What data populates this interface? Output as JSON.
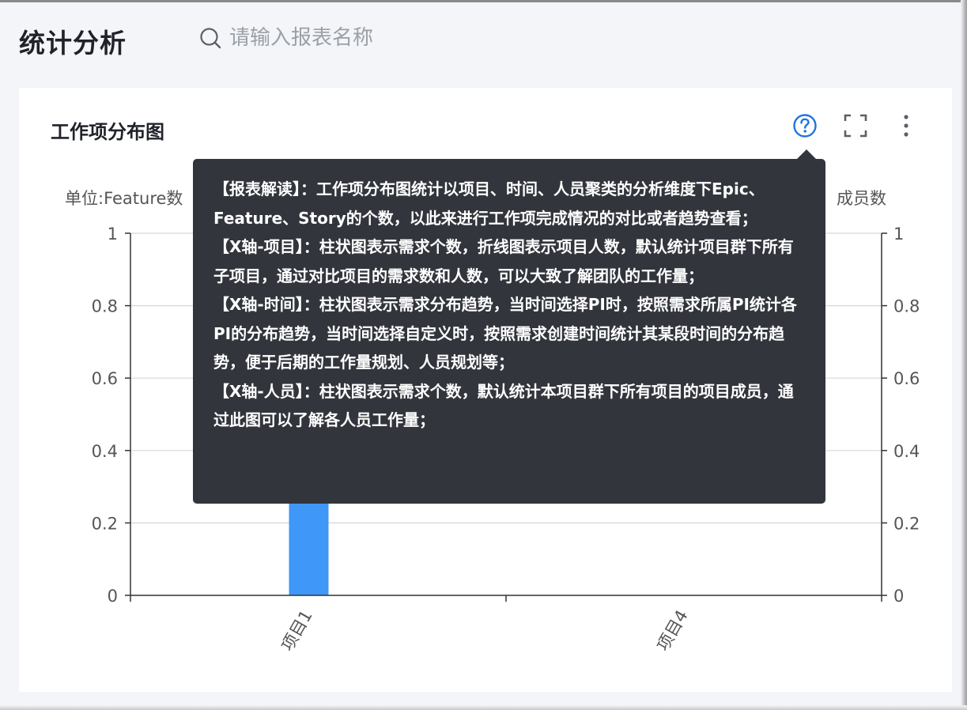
{
  "header": {
    "title": "统计分析",
    "search_placeholder": "请输入报表名称"
  },
  "card": {
    "title": "工作项分布图",
    "tools": [
      "help-icon",
      "fullscreen-icon",
      "more-vertical-icon"
    ]
  },
  "chart_data": {
    "type": "bar",
    "left_axis_label": "单位:Feature数",
    "right_axis_label": "成员数",
    "categories": [
      "项目1",
      "项目4"
    ],
    "series": [
      {
        "type": "bar",
        "values": [
          1,
          0
        ],
        "color": "#3f97f7"
      }
    ],
    "y_left": {
      "ylim": [
        0,
        1
      ],
      "ticks": [
        "0",
        "0.2",
        "0.4",
        "0.6",
        "0.8",
        "1"
      ]
    },
    "y_right": {
      "ylim": [
        0,
        1
      ],
      "ticks": [
        "0",
        "0.2",
        "0.4",
        "0.6",
        "0.8",
        "1"
      ]
    },
    "grid": true
  },
  "tooltip": {
    "paragraphs": [
      "【报表解读】：工作项分布图统计以项目、时间、人员聚类的分析维度下Epic、Feature、Story的个数，以此来进行工作项完成情况的对比或者趋势查看；",
      "【X轴-项目】：柱状图表示需求个数，折线图表示项目人数，默认统计项目群下所有子项目，通过对比项目的需求数和人数，可以大致了解团队的工作量；",
      "【X轴-时间】：柱状图表示需求分布趋势，当时间选择PI时，按照需求所属PI统计各PI的分布趋势，当时间选择自定义时，按照需求创建时间统计其某段时间的分布趋势，便于后期的工作量规划、人员规划等；",
      "【X轴-人员】：柱状图表示需求个数，默认统计本项目群下所有项目的项目成员，通过此图可以了解各人员工作量；"
    ]
  },
  "colors": {
    "accent": "#1e74e0",
    "bar": "#3f97f7",
    "tooltip_bg": "#32353c",
    "page_bg": "#f4f5f8"
  }
}
